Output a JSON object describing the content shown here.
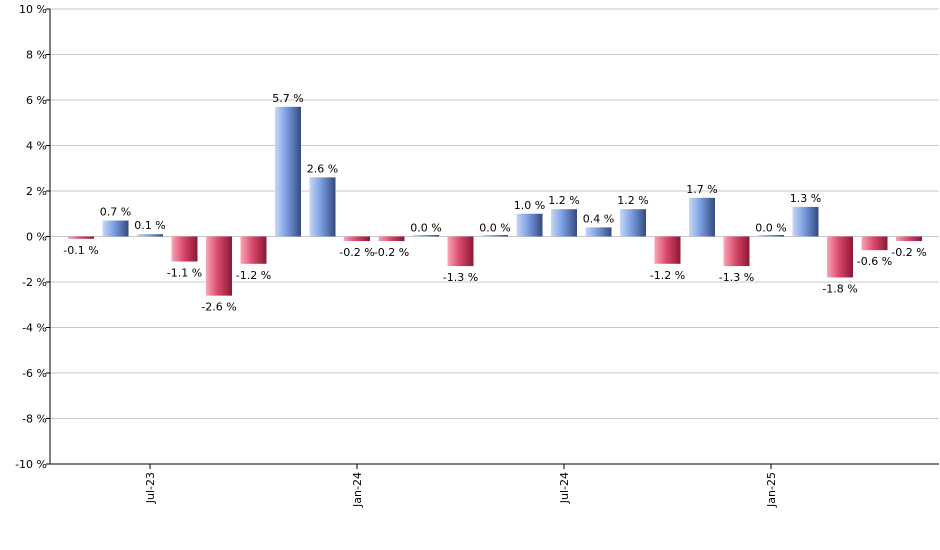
{
  "chart_data": {
    "type": "bar",
    "title": "",
    "xlabel": "",
    "ylabel": "",
    "ylim": [
      -10,
      10
    ],
    "yticks": [
      "10 %",
      "8 %",
      "6 %",
      "4 %",
      "2 %",
      "0 %",
      "-2 %",
      "-4 %",
      "-6 %",
      "-8 %",
      "-10 %"
    ],
    "grid": true,
    "x_tick_labels": [
      {
        "label": "Jul-23",
        "index": 2
      },
      {
        "label": "Jan-24",
        "index": 8
      },
      {
        "label": "Jul-24",
        "index": 14
      },
      {
        "label": "Jan-25",
        "index": 20
      }
    ],
    "values": [
      -0.1,
      0.7,
      0.1,
      -1.1,
      -2.6,
      -1.2,
      5.7,
      2.6,
      -0.2,
      -0.2,
      0.0,
      -1.3,
      0.0,
      1.0,
      1.2,
      0.4,
      1.2,
      -1.2,
      1.7,
      -1.3,
      0.0,
      1.3,
      -1.8,
      -0.6,
      -0.2
    ],
    "labels": [
      "-0.1 %",
      "0.7 %",
      "0.1 %",
      "-1.1 %",
      "-2.6 %",
      "-1.2 %",
      "5.7 %",
      "2.6 %",
      "-0.2 %",
      "-0.2 %",
      "0.0 %",
      "-1.3 %",
      "0.0 %",
      "1.0 %",
      "1.2 %",
      "0.4 %",
      "1.2 %",
      "-1.2 %",
      "1.7 %",
      "-1.3 %",
      "0.0 %",
      "1.3 %",
      "-1.8 %",
      "-0.6 %",
      "-0.2 %"
    ],
    "colors": {
      "positive_light": "#b6cbf4",
      "positive_dark": "#3d5a93",
      "negative_light": "#f08aa0",
      "negative_dark": "#9c1d3c",
      "grid": "#c8c8c8",
      "axis": "#000000"
    }
  }
}
